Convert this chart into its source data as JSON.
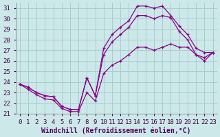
{
  "xlabel": "Windchill (Refroidissement éolien,°C)",
  "ylabel": "",
  "xlim": [
    -0.5,
    23.5
  ],
  "ylim": [
    21,
    31.5
  ],
  "xticks": [
    0,
    1,
    2,
    3,
    4,
    5,
    6,
    7,
    8,
    9,
    10,
    11,
    12,
    13,
    14,
    15,
    16,
    17,
    18,
    19,
    20,
    21,
    22,
    23
  ],
  "yticks": [
    21,
    22,
    23,
    24,
    25,
    26,
    27,
    28,
    29,
    30,
    31
  ],
  "bg_color": "#cce8e8",
  "grid_color": "#a8cece",
  "line_color": "#880088",
  "line1_x": [
    0,
    1,
    2,
    3,
    4,
    5,
    6,
    7,
    8,
    9,
    10,
    11,
    12,
    13,
    14,
    15,
    16,
    17,
    18,
    19,
    20,
    21,
    22,
    23
  ],
  "line1_y": [
    23.8,
    23.5,
    23.0,
    22.7,
    22.6,
    21.7,
    21.4,
    21.4,
    24.4,
    22.7,
    27.2,
    28.5,
    29.2,
    29.8,
    31.2,
    31.2,
    31.0,
    31.2,
    30.3,
    29.3,
    28.5,
    27.2,
    26.8,
    26.8
  ],
  "line2_x": [
    0,
    1,
    2,
    3,
    4,
    5,
    6,
    7,
    8,
    9,
    10,
    11,
    12,
    13,
    14,
    15,
    16,
    17,
    18,
    19,
    20,
    21,
    22,
    23
  ],
  "line2_y": [
    23.8,
    23.5,
    23.0,
    22.7,
    22.6,
    21.7,
    21.4,
    21.4,
    24.4,
    22.7,
    26.6,
    27.8,
    28.5,
    29.2,
    30.3,
    30.3,
    30.0,
    30.3,
    30.1,
    28.8,
    28.0,
    26.6,
    26.0,
    26.8
  ],
  "line3_x": [
    0,
    1,
    2,
    3,
    4,
    5,
    6,
    7,
    8,
    9,
    10,
    11,
    12,
    13,
    14,
    15,
    16,
    17,
    18,
    19,
    20,
    21,
    22,
    23
  ],
  "line3_y": [
    23.8,
    23.3,
    22.8,
    22.4,
    22.3,
    21.5,
    21.2,
    21.2,
    23.0,
    22.2,
    24.8,
    25.6,
    26.0,
    26.6,
    27.3,
    27.3,
    27.0,
    27.3,
    27.6,
    27.3,
    27.3,
    26.6,
    26.3,
    26.8
  ],
  "xlabel_fontsize": 7,
  "tick_fontsize": 6.5
}
